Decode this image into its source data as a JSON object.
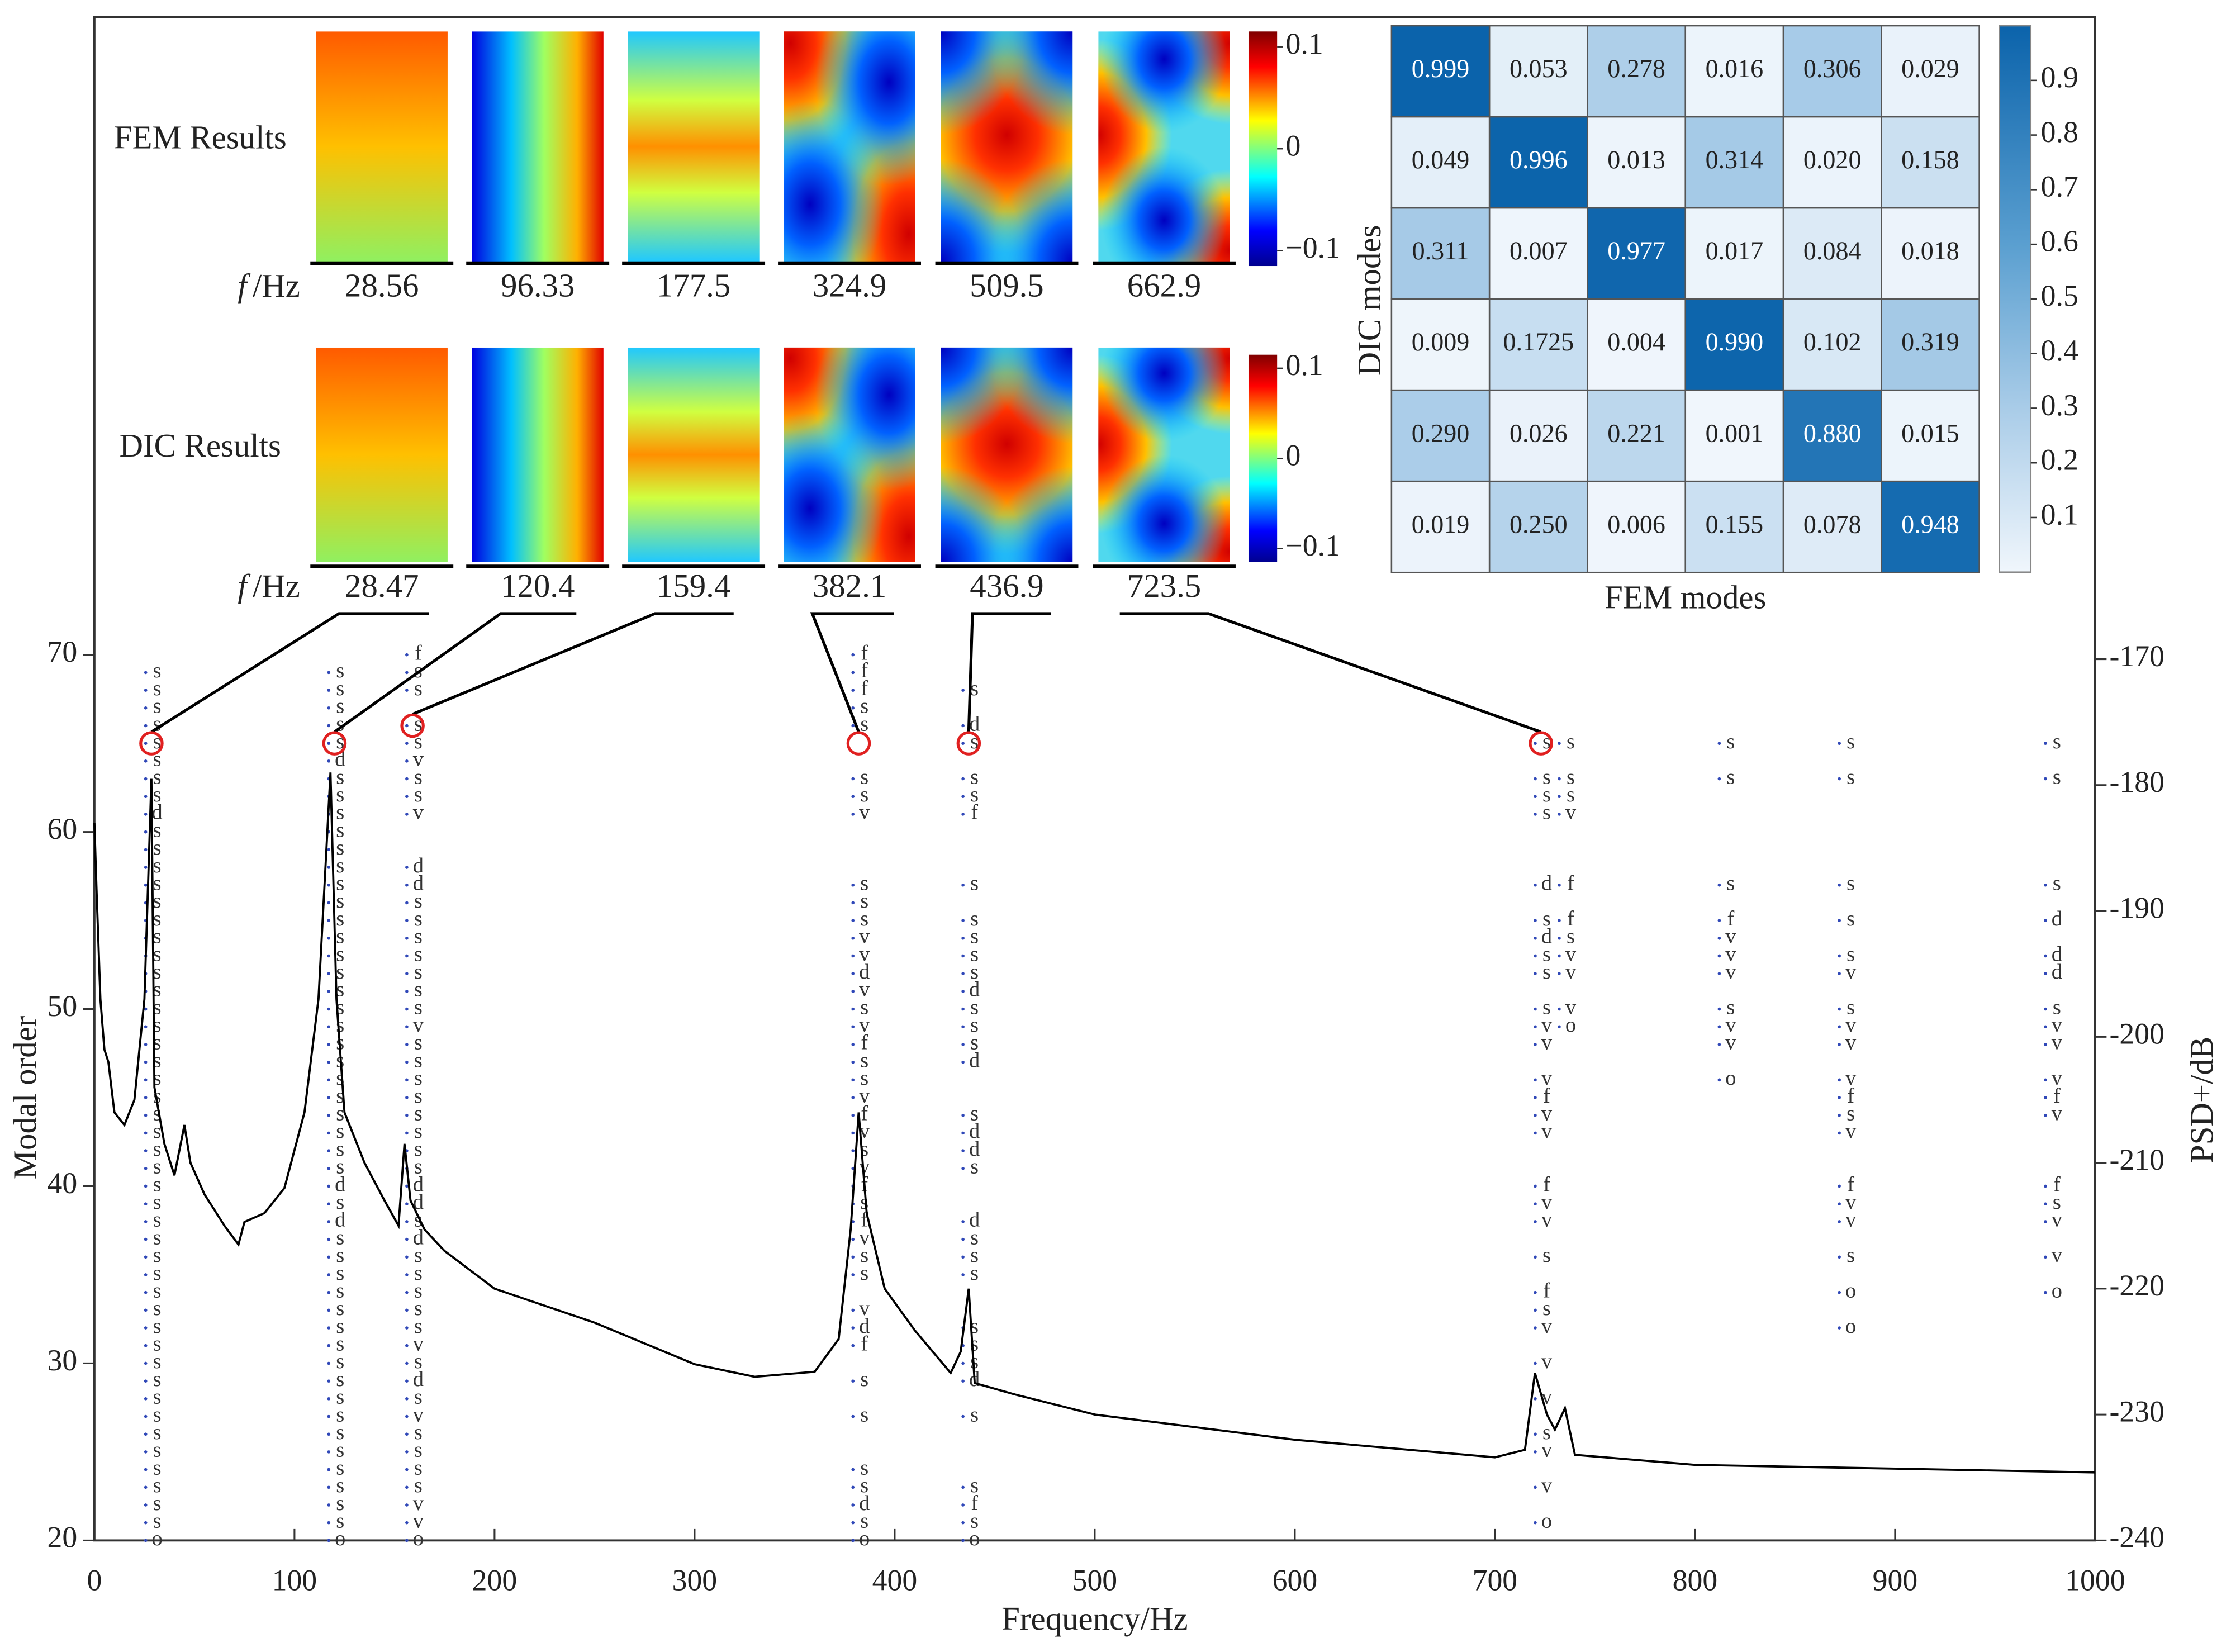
{
  "chart_data": {
    "type": "stabilization",
    "x_label": "Frequency/Hz",
    "y_label": "Modal order",
    "y2_label": "PSD+/dB",
    "xlim": [
      0,
      1000
    ],
    "xticks": [
      0,
      100,
      200,
      300,
      400,
      500,
      600,
      700,
      800,
      900,
      1000
    ],
    "ylim": [
      20,
      106
    ],
    "yticks": [
      20,
      30,
      40,
      50,
      60,
      70
    ],
    "y2lim": [
      -240,
      -119
    ],
    "y2ticks": [
      -240,
      -230,
      -220,
      -210,
      -200,
      -190,
      -180,
      -170
    ],
    "psd": {
      "axis": "y2",
      "color": "#000000",
      "x": [
        0,
        1,
        3,
        5,
        7,
        10,
        15,
        20,
        25,
        28.5,
        30,
        35,
        40,
        45,
        48,
        55,
        65,
        72,
        75,
        85,
        95,
        105,
        112,
        118,
        121,
        125,
        135,
        145,
        152,
        155,
        158,
        165,
        175,
        200,
        250,
        300,
        330,
        360,
        372,
        378,
        382,
        386,
        395,
        410,
        428,
        433,
        437,
        440,
        460,
        500,
        600,
        700,
        715,
        720,
        726,
        730,
        735,
        740,
        800,
        900,
        1000
      ],
      "values": [
        -183,
        -188,
        -197,
        -201,
        -202,
        -206,
        -207,
        -205,
        -197,
        -179.5,
        -204,
        -208.5,
        -211,
        -207,
        -210,
        -212.5,
        -215,
        -216.5,
        -214.7,
        -214,
        -212,
        -206,
        -197,
        -179,
        -197,
        -206,
        -210,
        -213,
        -215,
        -208.5,
        -213,
        -215.3,
        -217,
        -220,
        -222.7,
        -226,
        -227,
        -226.6,
        -224,
        -215.3,
        -206,
        -214,
        -220,
        -223.3,
        -226.7,
        -225,
        -220,
        -227.5,
        -228.4,
        -230,
        -232,
        -233.4,
        -232.8,
        -226.7,
        -230,
        -231.2,
        -229.5,
        -233.2,
        -234,
        -234.3,
        -234.6
      ]
    },
    "stabilization": [
      {
        "freq": 28.5,
        "orders": [
          20,
          21,
          22,
          23,
          24,
          25,
          26,
          27,
          28,
          29,
          30,
          31,
          32,
          33,
          34,
          35,
          36,
          37,
          38,
          39,
          40,
          41,
          42,
          43,
          44,
          45,
          46,
          47,
          48,
          49,
          50,
          51,
          52,
          53,
          54,
          55,
          56,
          57,
          58,
          59,
          60,
          61,
          62,
          63,
          64,
          65,
          66,
          67,
          68,
          69
        ],
        "codes": [
          "o",
          "s",
          "s",
          "s",
          "s",
          "s",
          "s",
          "s",
          "s",
          "s",
          "s",
          "s",
          "s",
          "s",
          "s",
          "s",
          "s",
          "s",
          "s",
          "s",
          "s",
          "s",
          "s",
          "s",
          "s",
          "s",
          "s",
          "s",
          "s",
          "s",
          "s",
          "s",
          "s",
          "s",
          "s",
          "s",
          "s",
          "s",
          "s",
          "s",
          "s",
          "d",
          "s",
          "s",
          "s",
          "s",
          "s",
          "s",
          "s",
          "s"
        ]
      },
      {
        "freq": 120,
        "orders": [
          20,
          21,
          22,
          23,
          24,
          25,
          26,
          27,
          28,
          29,
          30,
          31,
          32,
          33,
          34,
          35,
          36,
          37,
          38,
          39,
          40,
          41,
          42,
          43,
          44,
          45,
          46,
          47,
          48,
          49,
          50,
          51,
          52,
          53,
          54,
          55,
          56,
          57,
          58,
          59,
          60,
          61,
          62,
          63,
          64,
          65,
          66,
          67,
          68,
          69
        ],
        "codes": [
          "o",
          "s",
          "s",
          "s",
          "s",
          "s",
          "s",
          "s",
          "s",
          "s",
          "s",
          "s",
          "s",
          "s",
          "s",
          "s",
          "s",
          "s",
          "d",
          "s",
          "d",
          "s",
          "s",
          "s",
          "s",
          "s",
          "s",
          "s",
          "s",
          "s",
          "s",
          "s",
          "s",
          "s",
          "s",
          "s",
          "s",
          "s",
          "s",
          "s",
          "s",
          "s",
          "s",
          "s",
          "d",
          "s",
          "s",
          "s",
          "s",
          "s"
        ]
      },
      {
        "freq": 159,
        "orders": [
          20,
          21,
          22,
          23,
          24,
          25,
          26,
          27,
          28,
          29,
          30,
          31,
          32,
          33,
          34,
          35,
          36,
          37,
          38,
          39,
          40,
          41,
          42,
          43,
          44,
          45,
          46,
          47,
          48,
          49,
          50,
          51,
          52,
          53,
          54,
          55,
          56,
          57,
          58,
          61,
          62,
          63,
          64,
          65,
          66,
          68,
          69,
          70
        ],
        "codes": [
          "o",
          "v",
          "v",
          "s",
          "s",
          "s",
          "s",
          "v",
          "s",
          "d",
          "s",
          "v",
          "s",
          "s",
          "s",
          "s",
          "s",
          "d",
          "s",
          "d",
          "d",
          "s",
          "s",
          "s",
          "s",
          "s",
          "s",
          "s",
          "s",
          "v",
          "s",
          "s",
          "s",
          "s",
          "s",
          "s",
          "s",
          "d",
          "d",
          "v",
          "s",
          "s",
          "v",
          "s",
          "s",
          "s",
          "s",
          "f"
        ]
      },
      {
        "freq": 382,
        "orders": [
          20,
          21,
          22,
          23,
          24,
          27,
          29,
          31,
          32,
          33,
          35,
          36,
          37,
          38,
          39,
          40,
          41,
          42,
          43,
          44,
          45,
          46,
          47,
          48,
          49,
          50,
          51,
          52,
          53,
          54,
          55,
          56,
          57,
          61,
          62,
          63,
          66,
          67,
          68,
          69,
          70
        ],
        "codes": [
          "o",
          "s",
          "d",
          "s",
          "s",
          "s",
          "s",
          "f",
          "d",
          "v",
          "s",
          "s",
          "v",
          "f",
          "s",
          "f",
          "v",
          "s",
          "v",
          "f",
          "v",
          "s",
          "s",
          "f",
          "v",
          "s",
          "v",
          "d",
          "v",
          "v",
          "s",
          "s",
          "s",
          "v",
          "s",
          "s",
          "s",
          "s",
          "f",
          "f",
          "f"
        ]
      },
      {
        "freq": 437,
        "orders": [
          20,
          21,
          22,
          23,
          27,
          29,
          30,
          31,
          32,
          35,
          36,
          37,
          38,
          41,
          42,
          43,
          44,
          47,
          48,
          49,
          50,
          51,
          52,
          53,
          54,
          55,
          57,
          61,
          62,
          63,
          65,
          66,
          68
        ],
        "codes": [
          "o",
          "s",
          "f",
          "s",
          "s",
          "d",
          "s",
          "s",
          "s",
          "s",
          "s",
          "s",
          "d",
          "s",
          "d",
          "d",
          "s",
          "d",
          "s",
          "s",
          "s",
          "d",
          "s",
          "s",
          "s",
          "s",
          "s",
          "f",
          "s",
          "s",
          "s",
          "d",
          "s"
        ]
      },
      {
        "freq": 723,
        "orders": [
          21,
          23,
          25,
          26,
          28,
          30,
          32,
          33,
          34,
          36,
          38,
          39,
          40,
          43,
          44,
          45,
          46,
          48,
          49,
          50,
          52,
          53,
          54,
          55,
          57,
          61,
          62,
          63,
          65
        ],
        "codes": [
          "o",
          "v",
          "v",
          "s",
          "v",
          "v",
          "v",
          "s",
          "f",
          "s",
          "v",
          "v",
          "f",
          "v",
          "v",
          "f",
          "v",
          "v",
          "v",
          "s",
          "s",
          "s",
          "d",
          "s",
          "d",
          "s",
          "s",
          "s",
          "s"
        ]
      },
      {
        "freq": 735,
        "orders": [
          49,
          50,
          52,
          53,
          54,
          55,
          57,
          61,
          62,
          63,
          65
        ],
        "codes": [
          "o",
          "v",
          "v",
          "v",
          "s",
          "f",
          "f",
          "v",
          "s",
          "s",
          "s"
        ]
      },
      {
        "freq": 815,
        "orders": [
          46,
          48,
          49,
          50,
          52,
          53,
          54,
          55,
          57,
          63,
          65
        ],
        "codes": [
          "o",
          "v",
          "v",
          "s",
          "v",
          "v",
          "v",
          "f",
          "s",
          "s",
          "s"
        ]
      },
      {
        "freq": 875,
        "orders": [
          32,
          34,
          36,
          38,
          39,
          40,
          43,
          44,
          45,
          46,
          48,
          49,
          50,
          52,
          53,
          55,
          57,
          63,
          65
        ],
        "codes": [
          "o",
          "o",
          "s",
          "v",
          "v",
          "f",
          "v",
          "s",
          "f",
          "v",
          "v",
          "v",
          "s",
          "v",
          "s",
          "s",
          "s",
          "s",
          "s"
        ]
      },
      {
        "freq": 978,
        "orders": [
          34,
          36,
          38,
          39,
          40,
          44,
          45,
          46,
          48,
          49,
          50,
          52,
          53,
          55,
          57,
          63,
          65
        ],
        "codes": [
          "o",
          "v",
          "v",
          "s",
          "f",
          "v",
          "f",
          "v",
          "v",
          "v",
          "s",
          "d",
          "d",
          "d",
          "s",
          "s",
          "s"
        ]
      }
    ],
    "selected": {
      "color": "#e02020",
      "x": [
        28.5,
        120,
        159,
        382,
        437,
        723
      ],
      "orders": [
        65,
        65,
        66,
        65,
        65,
        65
      ]
    },
    "fem": {
      "label": "FEM Results",
      "freq_symbol": "f",
      "freq_unit": "/Hz",
      "frequencies": [
        28.56,
        96.33,
        177.5,
        324.9,
        509.5,
        662.9
      ],
      "clim": [
        -0.115,
        0.115
      ],
      "cticks": [
        0.1,
        0,
        {
          "value": -0.1,
          "label": "−0.1"
        }
      ]
    },
    "dic": {
      "label": "DIC Results",
      "freq_symbol": "f",
      "freq_unit": "/Hz",
      "frequencies": [
        28.47,
        120.4,
        159.4,
        382.1,
        436.9,
        723.5
      ],
      "clim": [
        -0.115,
        0.115
      ],
      "cticks": [
        0.1,
        0,
        {
          "value": -0.1,
          "label": "−0.1"
        }
      ]
    },
    "mac": {
      "x_label": "FEM modes",
      "y_label": "DIC modes",
      "values": [
        [
          0.999,
          0.053,
          0.278,
          0.016,
          0.306,
          0.029
        ],
        [
          0.049,
          0.996,
          0.013,
          0.314,
          0.02,
          0.158
        ],
        [
          0.311,
          0.007,
          0.977,
          0.017,
          0.084,
          0.018
        ],
        [
          0.009,
          0.1725,
          0.004,
          0.99,
          0.102,
          0.319
        ],
        [
          0.29,
          0.026,
          0.221,
          0.001,
          0.88,
          0.015
        ],
        [
          0.019,
          0.25,
          0.006,
          0.155,
          0.078,
          0.948
        ]
      ],
      "value_labels": [
        [
          "0.999",
          "0.053",
          "0.278",
          "0.016",
          "0.306",
          "0.029"
        ],
        [
          "0.049",
          "0.996",
          "0.013",
          "0.314",
          "0.020",
          "0.158"
        ],
        [
          "0.311",
          "0.007",
          "0.977",
          "0.017",
          "0.084",
          "0.018"
        ],
        [
          "0.009",
          "0.1725",
          "0.004",
          "0.990",
          "0.102",
          "0.319"
        ],
        [
          "0.290",
          "0.026",
          "0.221",
          "0.001",
          "0.880",
          "0.015"
        ],
        [
          "0.019",
          "0.250",
          "0.006",
          "0.155",
          "0.078",
          "0.948"
        ]
      ],
      "clim": [
        0,
        1
      ],
      "cticks": [
        0.1,
        0.2,
        0.3,
        0.4,
        0.5,
        0.6,
        0.7,
        0.8,
        0.9
      ]
    }
  }
}
